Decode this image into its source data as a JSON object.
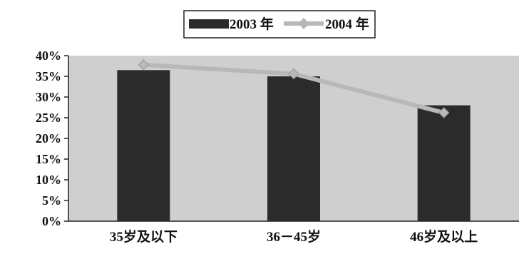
{
  "chart_data": {
    "type": "bar",
    "categories": [
      "35岁及以下",
      "36－45岁",
      "46岁及以上"
    ],
    "series": [
      {
        "name": "2003 年",
        "type": "bar",
        "values": [
          36.5,
          35.0,
          28.0
        ],
        "color": "#2b2b2b"
      },
      {
        "name": "2004 年",
        "type": "line",
        "values": [
          37.8,
          35.6,
          26.2
        ],
        "color": "#b8b8b8"
      }
    ],
    "yticks": [
      "0%",
      "5%",
      "10%",
      "15%",
      "20%",
      "25%",
      "30%",
      "35%",
      "40%"
    ],
    "ylim": [
      0,
      40
    ],
    "y_unit": "%",
    "legend_position": "top-center",
    "grid": false,
    "plot_background": "#cfcfcf"
  }
}
